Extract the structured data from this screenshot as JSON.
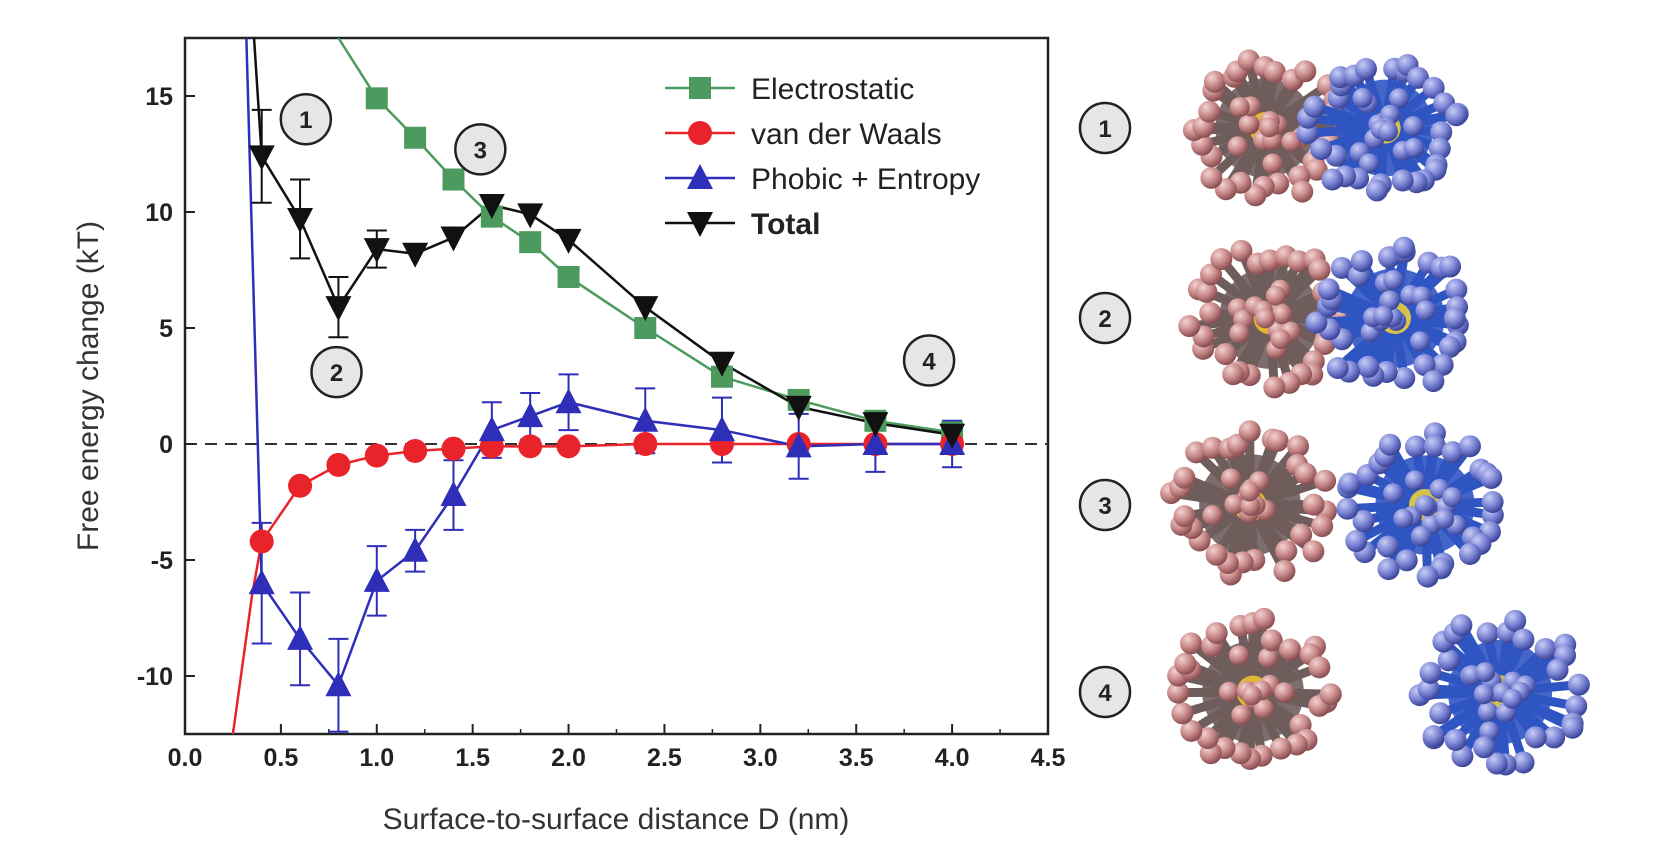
{
  "chart_data": {
    "type": "line",
    "xlabel": "Surface-to-surface distance D (nm)",
    "ylabel": "Free energy change (kT)",
    "xlim": [
      0.0,
      4.5
    ],
    "ylim": [
      -12.5,
      17.5
    ],
    "x_ticks": [
      "0.0",
      "0.5",
      "1.0",
      "1.5",
      "2.0",
      "2.5",
      "3.0",
      "3.5",
      "4.0",
      "4.5"
    ],
    "y_ticks": [
      "15",
      "10",
      "5",
      "0",
      "-5",
      "-10"
    ],
    "y_tick_values": [
      15,
      10,
      5,
      0,
      -5,
      -10
    ],
    "zero_line": "dashed",
    "grid": false,
    "legend_position": "top-right",
    "series": [
      {
        "name": "Electrostatic",
        "color": "#4d9a5e",
        "marker": "square",
        "x": [
          1.0,
          1.2,
          1.4,
          1.6,
          1.8,
          2.0,
          2.4,
          2.8,
          3.2,
          3.6,
          4.0
        ],
        "y": [
          14.9,
          13.2,
          11.4,
          9.8,
          8.7,
          7.2,
          5.0,
          2.9,
          1.9,
          1.0,
          0.5
        ],
        "line_x": [
          0.8,
          1.0,
          1.2,
          1.4,
          1.6,
          1.8,
          2.0,
          2.4,
          2.8,
          3.2,
          3.6,
          4.0
        ],
        "line_y": [
          17.5,
          14.9,
          13.2,
          11.4,
          9.8,
          8.7,
          7.2,
          5.0,
          2.9,
          1.9,
          1.0,
          0.5
        ]
      },
      {
        "name": "van der Waals",
        "color": "#e8232a",
        "marker": "circle",
        "x": [
          0.4,
          0.6,
          0.8,
          1.0,
          1.2,
          1.4,
          1.6,
          1.8,
          2.0,
          2.4,
          2.8,
          3.2,
          3.6,
          4.0
        ],
        "y": [
          -4.2,
          -1.8,
          -0.9,
          -0.5,
          -0.3,
          -0.2,
          -0.1,
          -0.1,
          -0.1,
          0.0,
          0.0,
          0.0,
          0.0,
          0.0
        ],
        "line_x": [
          0.25,
          0.3,
          0.35,
          0.4,
          0.6,
          0.8,
          1.0,
          1.2,
          1.4,
          1.6,
          1.8,
          2.0,
          2.4,
          2.8,
          3.2,
          3.6,
          4.0
        ],
        "line_y": [
          -12.5,
          -9.5,
          -6.5,
          -4.2,
          -1.8,
          -0.9,
          -0.5,
          -0.3,
          -0.2,
          -0.1,
          -0.1,
          -0.1,
          0.0,
          0.0,
          0.0,
          0.0,
          0.0
        ]
      },
      {
        "name": "Phobic + Entropy",
        "color": "#2e2eb8",
        "marker": "triangle-up",
        "x": [
          0.4,
          0.6,
          0.8,
          1.0,
          1.2,
          1.4,
          1.6,
          1.8,
          2.0,
          2.4,
          2.8,
          3.2,
          3.6,
          4.0
        ],
        "y": [
          -6.0,
          -8.4,
          -10.4,
          -5.9,
          -4.6,
          -2.2,
          0.6,
          1.2,
          1.8,
          1.0,
          0.6,
          -0.1,
          0.0,
          0.0
        ],
        "err": [
          2.6,
          2.0,
          2.0,
          1.5,
          0.9,
          1.5,
          1.2,
          1.0,
          1.2,
          1.4,
          1.4,
          1.4,
          1.2,
          1.0
        ],
        "line_x": [
          0.32,
          0.4,
          0.6,
          0.8,
          1.0,
          1.2,
          1.4,
          1.6,
          1.8,
          2.0,
          2.4,
          2.8,
          3.2,
          3.6,
          4.0
        ],
        "line_y": [
          17.5,
          -6.0,
          -8.4,
          -10.4,
          -5.9,
          -4.6,
          -2.2,
          0.6,
          1.2,
          1.8,
          1.0,
          0.6,
          -0.1,
          0.0,
          0.0
        ]
      },
      {
        "name": "Total",
        "color": "#111111",
        "marker": "triangle-down",
        "x": [
          0.4,
          0.6,
          0.8,
          1.0,
          1.2,
          1.4,
          1.6,
          1.8,
          2.0,
          2.4,
          2.8,
          3.2,
          3.6,
          4.0
        ],
        "y": [
          12.4,
          9.7,
          5.9,
          8.4,
          8.2,
          8.9,
          10.3,
          9.9,
          8.8,
          5.9,
          3.5,
          1.6,
          0.9,
          0.4
        ],
        "err": [
          2.0,
          1.7,
          1.3,
          0.8,
          0.0,
          0.0,
          0.0,
          0.0,
          0.0,
          0.0,
          0.0,
          0.0,
          0.0,
          0.0
        ],
        "line_x": [
          0.36,
          0.4,
          0.6,
          0.8,
          1.0,
          1.2,
          1.4,
          1.6,
          1.8,
          2.0,
          2.4,
          2.8,
          3.2,
          3.6,
          4.0
        ],
        "line_y": [
          17.5,
          12.4,
          9.7,
          5.9,
          8.4,
          8.2,
          8.9,
          10.3,
          9.9,
          8.8,
          5.9,
          3.5,
          1.6,
          0.9,
          0.4
        ]
      }
    ],
    "annotations": [
      {
        "label": "1",
        "x": 0.63,
        "y": 14.0
      },
      {
        "label": "2",
        "x": 0.79,
        "y": 3.1
      },
      {
        "label": "3",
        "x": 1.54,
        "y": 12.7
      },
      {
        "label": "4",
        "x": 3.88,
        "y": 3.6
      }
    ]
  },
  "side_panel": {
    "labels": [
      "1",
      "2",
      "3",
      "4"
    ],
    "colors": {
      "left_cluster": "#c98a8a",
      "right_cluster": "#3f5fc8",
      "core": "#e4b830"
    }
  }
}
